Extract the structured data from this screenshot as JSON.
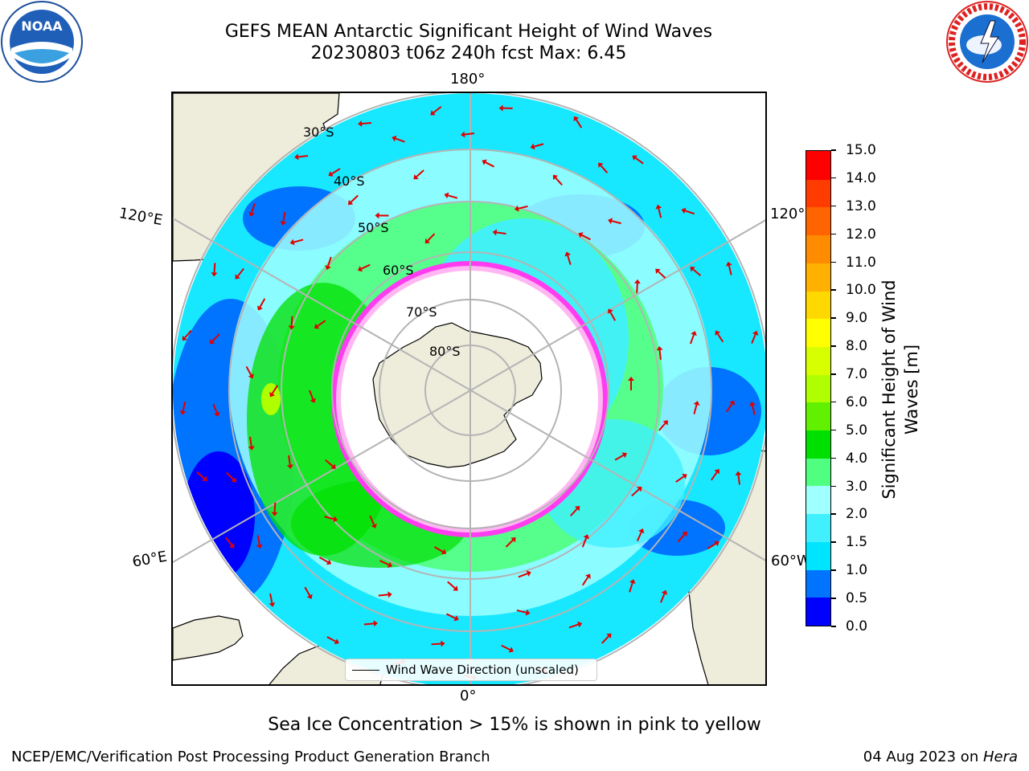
{
  "title": {
    "line1": "GEFS MEAN Antarctic Significant Height of Wind Waves",
    "line2": "20230803 t06z 240h fcst   Max: 6.45"
  },
  "logos": {
    "left": {
      "name": "noaa-logo",
      "text": "NOAA",
      "ring_text": "NATIONAL OCEANIC AND ATMOSPHERIC ADMINISTRATION · U.S. DEPARTMENT OF COMMERCE"
    },
    "right": {
      "name": "nws-logo",
      "ring_text": "NATIONAL WEATHER SERVICE"
    }
  },
  "map": {
    "projection": "south polar stereographic",
    "longitude_labels": {
      "top": "180°",
      "bottom": "0°",
      "upper_left": "120°E",
      "lower_left": "60°E",
      "upper_right": "120°W",
      "lower_right": "60°W"
    },
    "latitude_labels": [
      "30°S",
      "40°S",
      "50°S",
      "60°S",
      "70°S",
      "80°S"
    ],
    "legend": {
      "label": "Wind Wave Direction (unscaled)"
    },
    "colors": {
      "land": "#eeeddc",
      "ice_free_sea_ice": "#ffffff",
      "sea_ice_edge": "#ff3cf0"
    }
  },
  "colorbar": {
    "label": "Significant Height of Wind Waves [m]",
    "label_line1": "Significant Height of Wind",
    "label_line2": "Waves [m]",
    "ticks": [
      "0.0",
      "0.5",
      "1.0",
      "1.5",
      "2.0",
      "3.0",
      "4.0",
      "5.0",
      "6.0",
      "7.0",
      "8.0",
      "9.0",
      "10.0",
      "11.0",
      "12.0",
      "13.0",
      "14.0",
      "15.0"
    ],
    "colors": [
      "#0000ff",
      "#0073ff",
      "#00e5ff",
      "#40f0ff",
      "#a0ffff",
      "#50ff80",
      "#00e000",
      "#60f000",
      "#b0ff00",
      "#d8ff00",
      "#ffff00",
      "#ffd800",
      "#ffb000",
      "#ff8c00",
      "#ff6400",
      "#ff3c00",
      "#ff0000"
    ]
  },
  "caption": "Sea Ice Concentration > 15% is shown in pink to yellow",
  "footer": {
    "left": "NCEP/EMC/Verification Post Processing Product Generation Branch",
    "right_prefix": "04 Aug 2023 on ",
    "right_host": "Hera"
  }
}
